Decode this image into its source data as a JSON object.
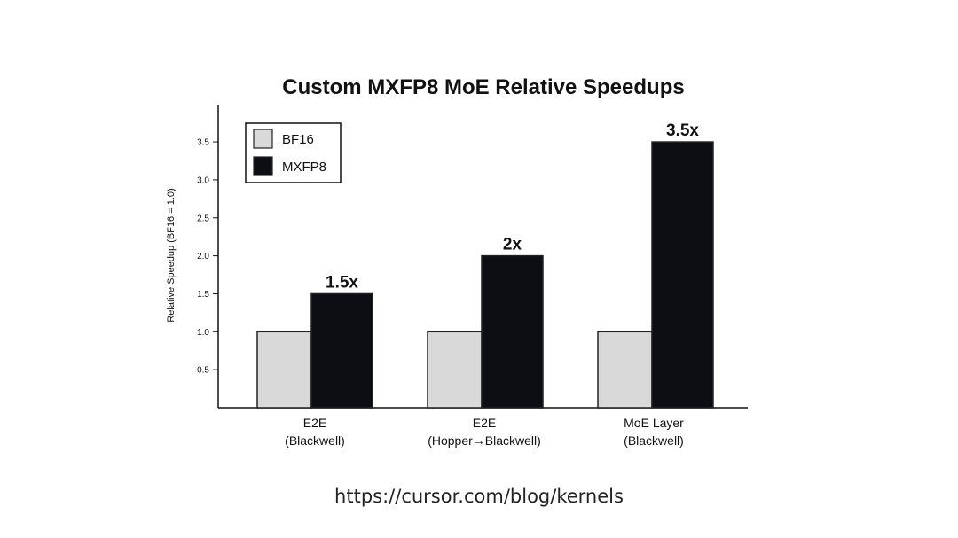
{
  "chart_data": {
    "type": "bar",
    "title": "Custom MXFP8 MoE Relative Speedups",
    "ylabel": "Relative Speedup (BF16 = 1.0)",
    "xlabel": "",
    "ylim": [
      0,
      4.0
    ],
    "yticks": [
      "0.5",
      "1.0",
      "1.5",
      "2.0",
      "2.5",
      "3.0",
      "3.5"
    ],
    "categories": [
      [
        "E2E",
        "(Blackwell)"
      ],
      [
        "E2E",
        "(Hopper→Blackwell)"
      ],
      [
        "MoE Layer",
        "(Blackwell)"
      ]
    ],
    "series": [
      {
        "name": "BF16",
        "color": "#d9d9d9",
        "values": [
          1.0,
          1.0,
          1.0
        ]
      },
      {
        "name": "MXFP8",
        "color": "#0d0e14",
        "values": [
          1.5,
          2.0,
          3.5
        ]
      }
    ],
    "data_labels": [
      "1.5x",
      "2x",
      "3.5x"
    ],
    "legend_position": "top-left",
    "grid": false
  },
  "footer": {
    "url": "https://cursor.com/blog/kernels"
  }
}
